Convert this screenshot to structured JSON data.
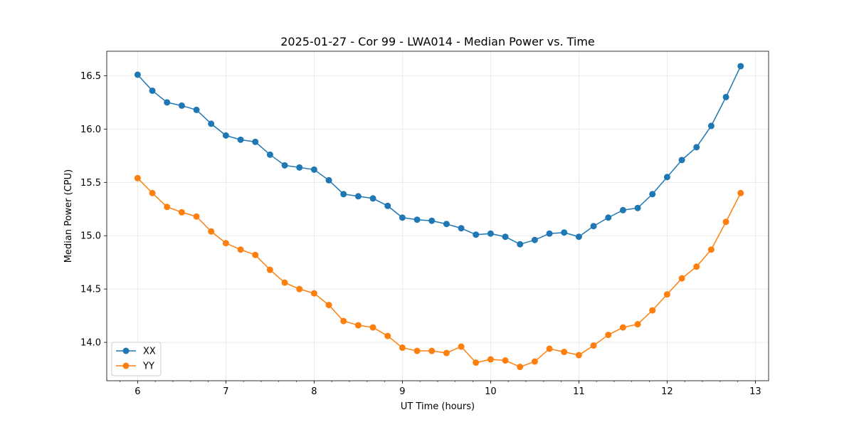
{
  "chart_data": {
    "type": "line",
    "title": "2025-01-27 - Cor 99 - LWA014 - Median Power vs. Time",
    "xlabel": "UT Time (hours)",
    "ylabel": "Median Power (CPU)",
    "xlim": [
      5.65,
      13.15
    ],
    "ylim": [
      13.64,
      16.73
    ],
    "xticks": [
      6,
      7,
      8,
      9,
      10,
      11,
      12,
      13
    ],
    "xtick_labels": [
      "6",
      "7",
      "8",
      "9",
      "10",
      "11",
      "12",
      "13"
    ],
    "yticks": [
      14.0,
      14.5,
      15.0,
      15.5,
      16.0,
      16.5
    ],
    "ytick_labels": [
      "14.0",
      "14.5",
      "15.0",
      "15.5",
      "16.0",
      "16.5"
    ],
    "grid": true,
    "legend_position": "lower-left",
    "x": [
      6.0,
      6.1667,
      6.3333,
      6.5,
      6.6667,
      6.8333,
      7.0,
      7.1667,
      7.3333,
      7.5,
      7.6667,
      7.8333,
      8.0,
      8.1667,
      8.3333,
      8.5,
      8.6667,
      8.8333,
      9.0,
      9.1667,
      9.3333,
      9.5,
      9.6667,
      9.8333,
      10.0,
      10.1667,
      10.3333,
      10.5,
      10.6667,
      10.8333,
      11.0,
      11.1667,
      11.3333,
      11.5,
      11.6667,
      11.8333,
      12.0,
      12.1667,
      12.3333,
      12.5,
      12.6667,
      12.8333
    ],
    "series": [
      {
        "name": "XX",
        "color": "#1f77b4",
        "values": [
          16.51,
          16.36,
          16.25,
          16.22,
          16.18,
          16.05,
          15.94,
          15.9,
          15.88,
          15.76,
          15.66,
          15.64,
          15.62,
          15.52,
          15.39,
          15.37,
          15.35,
          15.28,
          15.17,
          15.15,
          15.14,
          15.11,
          15.07,
          15.01,
          15.02,
          14.99,
          14.92,
          14.96,
          15.02,
          15.03,
          14.99,
          15.09,
          15.17,
          15.24,
          15.26,
          15.39,
          15.55,
          15.71,
          15.83,
          16.03,
          16.3,
          16.59
        ]
      },
      {
        "name": "YY",
        "color": "#ff7f0e",
        "values": [
          15.54,
          15.4,
          15.27,
          15.22,
          15.18,
          15.04,
          14.93,
          14.87,
          14.82,
          14.68,
          14.56,
          14.5,
          14.46,
          14.35,
          14.2,
          14.16,
          14.14,
          14.06,
          13.95,
          13.92,
          13.92,
          13.9,
          13.96,
          13.81,
          13.84,
          13.83,
          13.77,
          13.82,
          13.94,
          13.91,
          13.88,
          13.97,
          14.07,
          14.14,
          14.17,
          14.3,
          14.45,
          14.6,
          14.71,
          14.87,
          15.13,
          15.4
        ]
      }
    ]
  }
}
